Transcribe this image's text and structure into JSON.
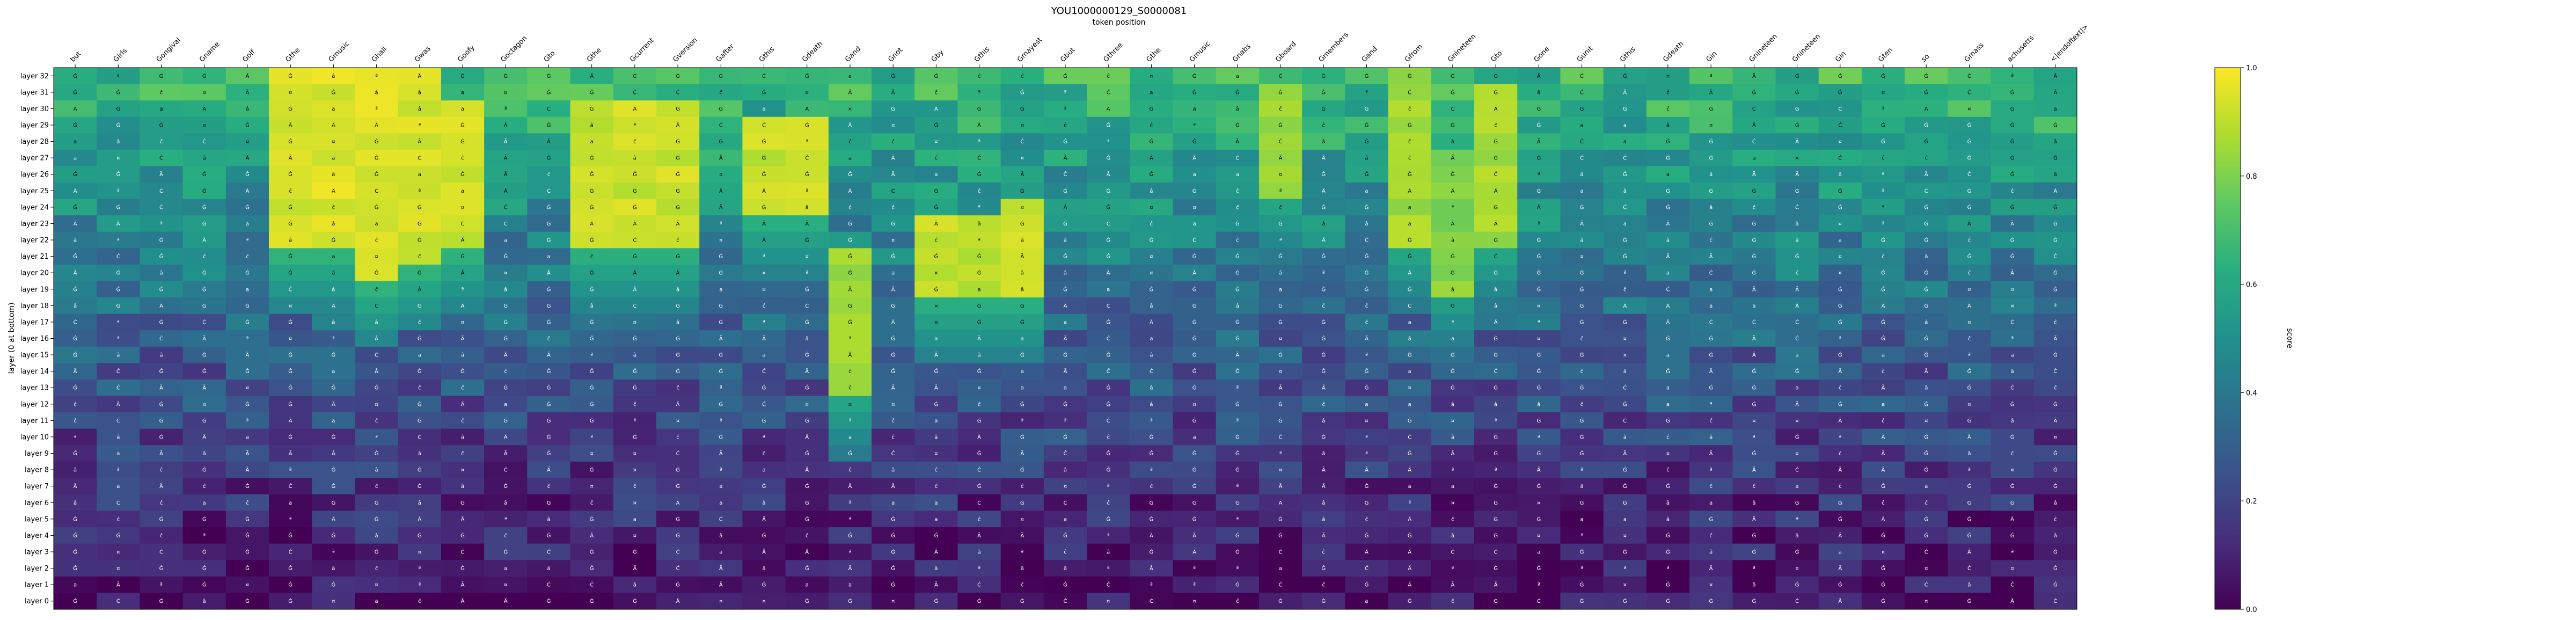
{
  "chart_data": {
    "type": "heatmap",
    "title": "YOU1000000129_S0000081",
    "x_axis_label": "token position",
    "ylabel": "layer (0 at bottom)",
    "colorbar": {
      "label": "score",
      "range": [
        0.0,
        1.0
      ],
      "ticks": [
        "0.0",
        "0.2",
        "0.4",
        "0.6",
        "0.8",
        "1.0"
      ],
      "colormap": "viridis"
    },
    "x_tokens": [
      "but",
      "Girls",
      "Gongival",
      "Gname",
      "Golf",
      "Gthe",
      "Gmusic",
      "Ghall",
      "Gwas",
      "Goofy",
      "Goctagon",
      "Gto",
      "Gthe",
      "Gcurrent",
      "Gversion",
      "Gafter",
      "Gthis",
      "Gdeath",
      "Gand",
      "Gnot",
      "Gby",
      "Gthis",
      "Gmayest",
      "Gbut",
      "Gthree",
      "Gthe",
      "Gmusic",
      "Gnabs",
      "Gboard",
      "Gmembers",
      "Gand",
      "Gfrom",
      "Gnineteen",
      "Gto",
      "Gone",
      "Gunit",
      "Gthis",
      "Gdeath",
      "Gin",
      "Gnineteen",
      "Gnineteen",
      "Gin",
      "Gten",
      "so",
      "Gmass",
      "achusetts",
      "<|endoftext|>"
    ],
    "y_layers": [
      "layer 32",
      "layer 31",
      "layer 30",
      "layer 29",
      "layer 28",
      "layer 27",
      "layer 26",
      "layer 25",
      "layer 24",
      "layer 23",
      "layer 22",
      "layer 21",
      "layer 20",
      "layer 19",
      "layer 18",
      "layer 17",
      "layer 16",
      "layer 15",
      "layer 14",
      "layer 13",
      "layer 12",
      "layer 11",
      "layer 10",
      "layer 9",
      "layer 8",
      "layer 7",
      "layer 6",
      "layer 5",
      "layer 4",
      "layer 3",
      "layer 2",
      "layer 1",
      "layer 0"
    ],
    "highlight_columns": [
      {
        "token_index": 5,
        "peak": 0.98,
        "from_layer": 32,
        "to_layer": 22
      },
      {
        "token_index": 6,
        "peak": 0.98,
        "from_layer": 32,
        "to_layer": 22
      },
      {
        "token_index": 7,
        "peak": 0.98,
        "from_layer": 32,
        "to_layer": 20
      },
      {
        "token_index": 8,
        "peak": 0.98,
        "from_layer": 32,
        "to_layer": 21
      },
      {
        "token_index": 9,
        "peak": 0.97,
        "from_layer": 30,
        "to_layer": 22
      },
      {
        "token_index": 12,
        "peak": 0.96,
        "from_layer": 30,
        "to_layer": 22
      },
      {
        "token_index": 13,
        "peak": 0.96,
        "from_layer": 30,
        "to_layer": 22
      },
      {
        "token_index": 14,
        "peak": 0.96,
        "from_layer": 30,
        "to_layer": 22
      },
      {
        "token_index": 16,
        "peak": 0.95,
        "from_layer": 29,
        "to_layer": 24
      },
      {
        "token_index": 17,
        "peak": 0.95,
        "from_layer": 29,
        "to_layer": 24
      },
      {
        "token_index": 18,
        "peak": 0.9,
        "from_layer": 21,
        "to_layer": 13
      },
      {
        "token_index": 20,
        "peak": 0.95,
        "from_layer": 23,
        "to_layer": 19
      },
      {
        "token_index": 21,
        "peak": 0.95,
        "from_layer": 23,
        "to_layer": 19
      },
      {
        "token_index": 22,
        "peak": 0.95,
        "from_layer": 24,
        "to_layer": 19
      },
      {
        "token_index": 28,
        "peak": 0.9,
        "from_layer": 31,
        "to_layer": 25
      },
      {
        "token_index": 31,
        "peak": 0.9,
        "from_layer": 32,
        "to_layer": 22
      },
      {
        "token_index": 32,
        "peak": 0.85,
        "from_layer": 27,
        "to_layer": 19
      },
      {
        "token_index": 33,
        "peak": 0.9,
        "from_layer": 31,
        "to_layer": 22
      }
    ]
  }
}
